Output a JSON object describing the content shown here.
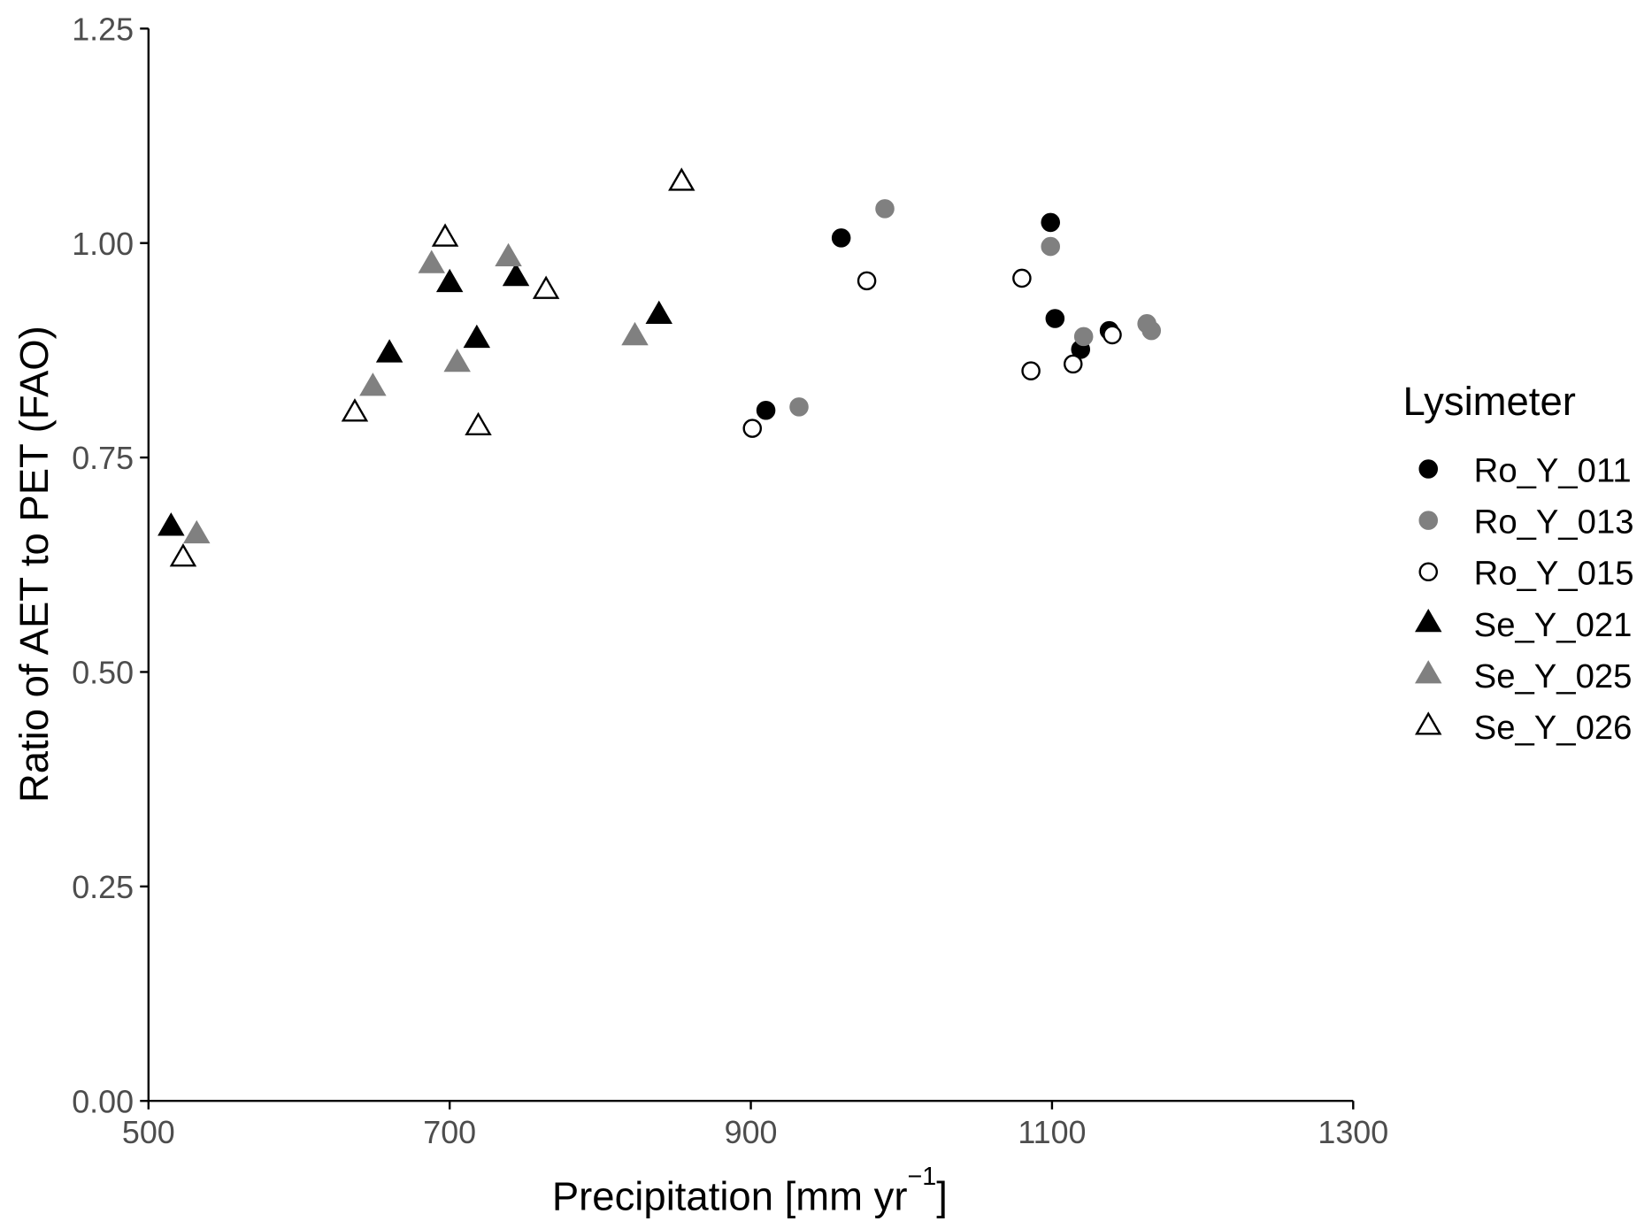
{
  "chart_data": {
    "type": "scatter",
    "title": "",
    "xlabel": "Precipitation [mm yr",
    "xlabel_superscript": "−1",
    "xlabel_suffix": "]",
    "ylabel": "Ratio of AET to PET (FAO)",
    "xlim": [
      500,
      1300
    ],
    "ylim": [
      0,
      1.25
    ],
    "x_ticks": [
      "500",
      "700",
      "900",
      "1100",
      "1300"
    ],
    "y_ticks": [
      "0.00",
      "0.25",
      "0.50",
      "0.75",
      "1.00",
      "1.25"
    ],
    "grid": false,
    "legend": {
      "title": "Lysimeter",
      "position": "right"
    },
    "series": [
      {
        "name": "Ro_Y_011",
        "shape": "circle",
        "fill": "#000000",
        "stroke": "#000000",
        "x": [
          960,
          910,
          1099,
          1102,
          1119,
          1138
        ],
        "y": [
          1.006,
          0.805,
          1.024,
          0.912,
          0.876,
          0.898
        ]
      },
      {
        "name": "Ro_Y_013",
        "shape": "circle",
        "fill": "#808080",
        "stroke": "#808080",
        "x": [
          989,
          932,
          1099,
          1121,
          1163,
          1166
        ],
        "y": [
          1.04,
          0.809,
          0.996,
          0.891,
          0.906,
          0.898
        ]
      },
      {
        "name": "Ro_Y_015",
        "shape": "circle",
        "fill": "#ffffff",
        "stroke": "#000000",
        "x": [
          977,
          901,
          1080,
          1086,
          1114,
          1140
        ],
        "y": [
          0.956,
          0.784,
          0.959,
          0.851,
          0.859,
          0.893
        ]
      },
      {
        "name": "Se_Y_021",
        "shape": "triangle",
        "fill": "#000000",
        "stroke": "#000000",
        "x": [
          515,
          660,
          700,
          718,
          744,
          839
        ],
        "y": [
          0.669,
          0.871,
          0.953,
          0.888,
          0.96,
          0.916
        ]
      },
      {
        "name": "Se_Y_025",
        "shape": "triangle",
        "fill": "#808080",
        "stroke": "#808080",
        "x": [
          532,
          649,
          688,
          705,
          739,
          823
        ],
        "y": [
          0.66,
          0.832,
          0.975,
          0.86,
          0.983,
          0.891
        ]
      },
      {
        "name": "Se_Y_026",
        "shape": "triangle",
        "fill": "#ffffff",
        "stroke": "#000000",
        "x": [
          523,
          637,
          697,
          719,
          764,
          854
        ],
        "y": [
          0.633,
          0.802,
          1.006,
          0.786,
          0.945,
          1.071
        ]
      }
    ]
  }
}
